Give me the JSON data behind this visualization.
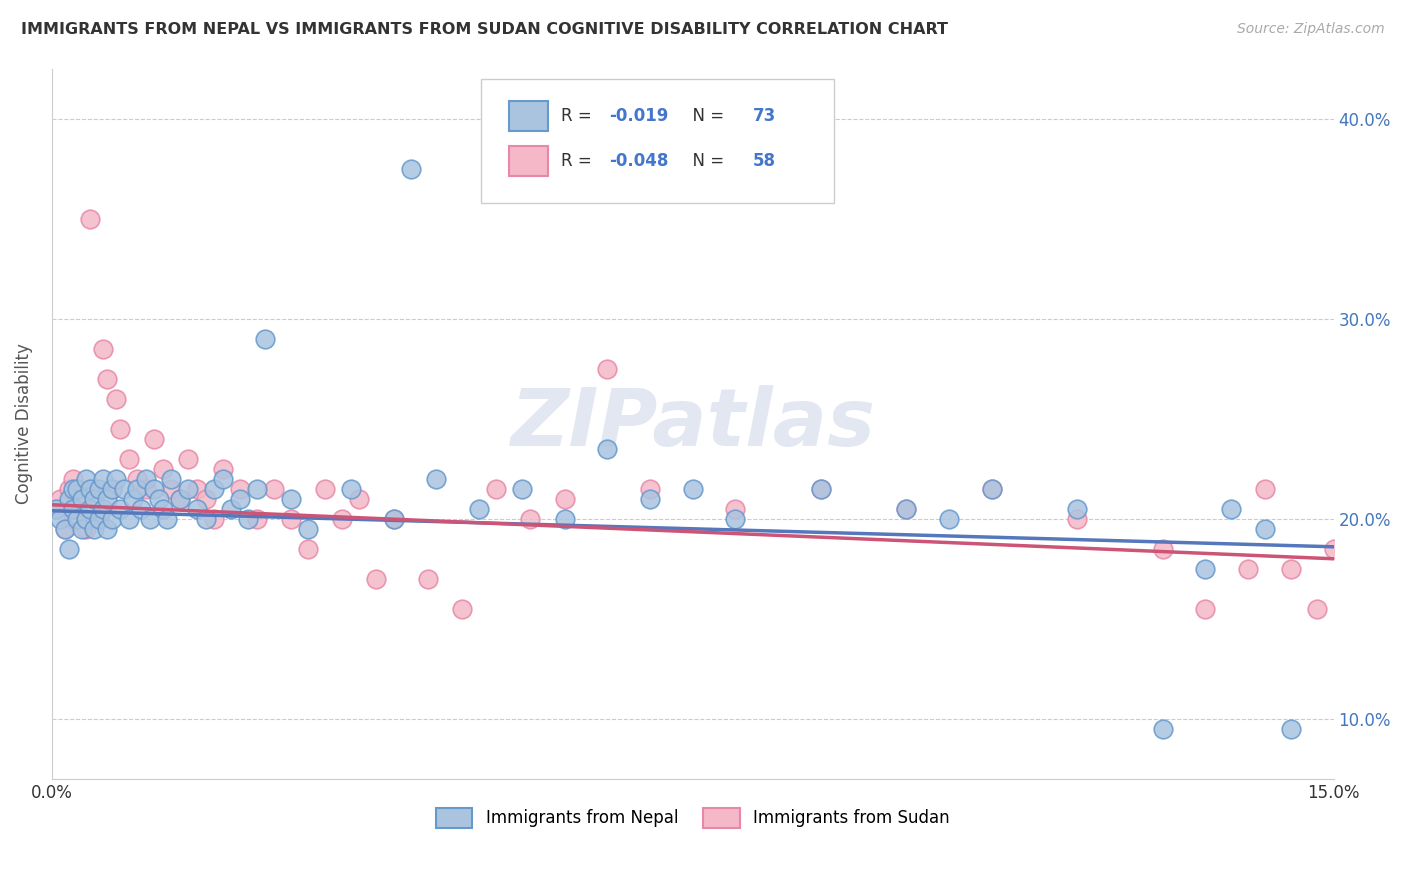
{
  "title": "IMMIGRANTS FROM NEPAL VS IMMIGRANTS FROM SUDAN COGNITIVE DISABILITY CORRELATION CHART",
  "source": "Source: ZipAtlas.com",
  "ylabel": "Cognitive Disability",
  "x_min": 0.0,
  "x_max": 0.15,
  "y_min": 0.07,
  "y_max": 0.425,
  "x_ticks": [
    0.0,
    0.03,
    0.06,
    0.09,
    0.12,
    0.15
  ],
  "y_ticks": [
    0.1,
    0.2,
    0.3,
    0.4
  ],
  "nepal_color": "#aac4e0",
  "sudan_color": "#f4b8c8",
  "nepal_edge_color": "#6699cc",
  "sudan_edge_color": "#e888a8",
  "line_nepal_color": "#5577bb",
  "line_sudan_color": "#cc5577",
  "nepal_R": -0.019,
  "nepal_N": 73,
  "sudan_R": -0.048,
  "sudan_N": 58,
  "legend_label_nepal": "Immigrants from Nepal",
  "legend_label_sudan": "Immigrants from Sudan",
  "watermark": "ZIPatlas",
  "nepal_x": [
    0.0005,
    0.001,
    0.0015,
    0.002,
    0.002,
    0.0025,
    0.0025,
    0.003,
    0.003,
    0.0035,
    0.0035,
    0.004,
    0.004,
    0.0045,
    0.0045,
    0.005,
    0.005,
    0.0055,
    0.0055,
    0.006,
    0.006,
    0.0065,
    0.0065,
    0.007,
    0.007,
    0.0075,
    0.008,
    0.0085,
    0.009,
    0.0095,
    0.01,
    0.0105,
    0.011,
    0.0115,
    0.012,
    0.0125,
    0.013,
    0.0135,
    0.014,
    0.015,
    0.016,
    0.017,
    0.018,
    0.019,
    0.02,
    0.021,
    0.022,
    0.023,
    0.024,
    0.025,
    0.028,
    0.03,
    0.035,
    0.04,
    0.042,
    0.045,
    0.05,
    0.055,
    0.06,
    0.065,
    0.07,
    0.075,
    0.08,
    0.09,
    0.1,
    0.105,
    0.11,
    0.12,
    0.13,
    0.135,
    0.138,
    0.142,
    0.145
  ],
  "nepal_y": [
    0.205,
    0.2,
    0.195,
    0.21,
    0.185,
    0.205,
    0.215,
    0.2,
    0.215,
    0.195,
    0.21,
    0.2,
    0.22,
    0.205,
    0.215,
    0.195,
    0.21,
    0.2,
    0.215,
    0.205,
    0.22,
    0.195,
    0.21,
    0.2,
    0.215,
    0.22,
    0.205,
    0.215,
    0.2,
    0.21,
    0.215,
    0.205,
    0.22,
    0.2,
    0.215,
    0.21,
    0.205,
    0.2,
    0.22,
    0.21,
    0.215,
    0.205,
    0.2,
    0.215,
    0.22,
    0.205,
    0.21,
    0.2,
    0.215,
    0.29,
    0.21,
    0.195,
    0.215,
    0.2,
    0.375,
    0.22,
    0.205,
    0.215,
    0.2,
    0.235,
    0.21,
    0.215,
    0.2,
    0.215,
    0.205,
    0.2,
    0.215,
    0.205,
    0.095,
    0.175,
    0.205,
    0.195,
    0.095
  ],
  "sudan_x": [
    0.0005,
    0.001,
    0.0015,
    0.002,
    0.0025,
    0.0025,
    0.003,
    0.0035,
    0.004,
    0.0045,
    0.005,
    0.0055,
    0.006,
    0.0065,
    0.007,
    0.0075,
    0.008,
    0.009,
    0.01,
    0.011,
    0.012,
    0.013,
    0.014,
    0.015,
    0.016,
    0.017,
    0.018,
    0.019,
    0.02,
    0.022,
    0.024,
    0.026,
    0.028,
    0.03,
    0.032,
    0.034,
    0.036,
    0.038,
    0.04,
    0.044,
    0.048,
    0.052,
    0.056,
    0.06,
    0.065,
    0.07,
    0.08,
    0.09,
    0.1,
    0.11,
    0.12,
    0.13,
    0.135,
    0.14,
    0.142,
    0.145,
    0.148,
    0.15
  ],
  "sudan_y": [
    0.205,
    0.21,
    0.195,
    0.215,
    0.2,
    0.22,
    0.205,
    0.21,
    0.195,
    0.35,
    0.215,
    0.2,
    0.285,
    0.27,
    0.215,
    0.26,
    0.245,
    0.23,
    0.22,
    0.215,
    0.24,
    0.225,
    0.215,
    0.21,
    0.23,
    0.215,
    0.21,
    0.2,
    0.225,
    0.215,
    0.2,
    0.215,
    0.2,
    0.185,
    0.215,
    0.2,
    0.21,
    0.17,
    0.2,
    0.17,
    0.155,
    0.215,
    0.2,
    0.21,
    0.275,
    0.215,
    0.205,
    0.215,
    0.205,
    0.215,
    0.2,
    0.185,
    0.155,
    0.175,
    0.215,
    0.175,
    0.155,
    0.185
  ]
}
